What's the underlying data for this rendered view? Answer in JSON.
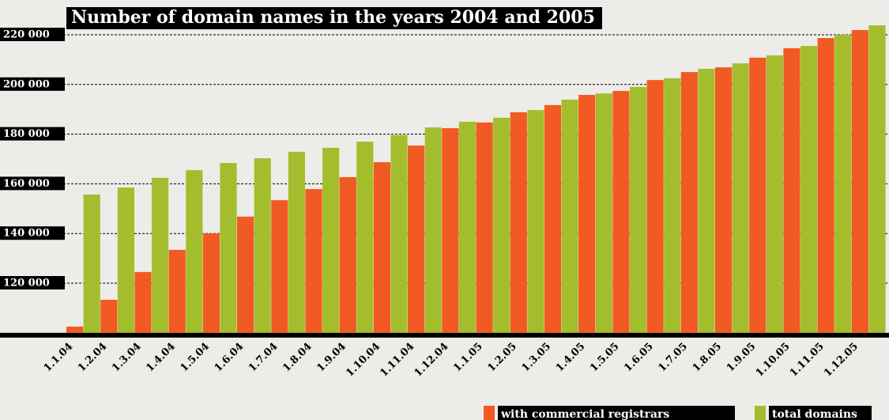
{
  "chart_data": {
    "type": "bar",
    "title": "Number of domain names in the years 2004 and 2005",
    "categories": [
      "1.1.04",
      "1.2.04",
      "1.3.04",
      "1.4.04",
      "1.5.04",
      "1.6.04",
      "1.7.04",
      "1.8.04",
      "1.9.04",
      "1.10.04",
      "1.11.04",
      "1.12.04",
      "1.1.05",
      "1.2.05",
      "1.3.05",
      "1.4.05",
      "1.5.05",
      "1.6.05",
      "1.7.05",
      "1.8.05",
      "1.9.05",
      "1.10.05",
      "1.11.05",
      "1.12.05"
    ],
    "series": [
      {
        "name": "with commercial registrars",
        "color": "#f15a22",
        "values": [
          102500,
          113300,
          124500,
          133400,
          140000,
          146800,
          153400,
          157900,
          162700,
          168700,
          175400,
          182400,
          184700,
          188800,
          191700,
          195800,
          197400,
          201800,
          205000,
          206900,
          210800,
          214600,
          218700,
          221900
        ]
      },
      {
        "name": "total domains",
        "color": "#a4bd2c",
        "values": [
          155700,
          158500,
          162400,
          165500,
          168400,
          170300,
          172900,
          174500,
          177000,
          179600,
          182700,
          185000,
          186600,
          189700,
          193900,
          196400,
          199000,
          202500,
          206300,
          208500,
          211700,
          215500,
          220000,
          223800
        ]
      }
    ],
    "ylim": [
      100000,
      225000
    ],
    "yticks": [
      {
        "value": 120000,
        "label": "120 000"
      },
      {
        "value": 140000,
        "label": "140 000"
      },
      {
        "value": 160000,
        "label": "160 000"
      },
      {
        "value": 180000,
        "label": "180 000"
      },
      {
        "value": 200000,
        "label": "200 000"
      },
      {
        "value": 220000,
        "label": "220 000"
      }
    ],
    "grid": true,
    "legend": "bottom"
  }
}
